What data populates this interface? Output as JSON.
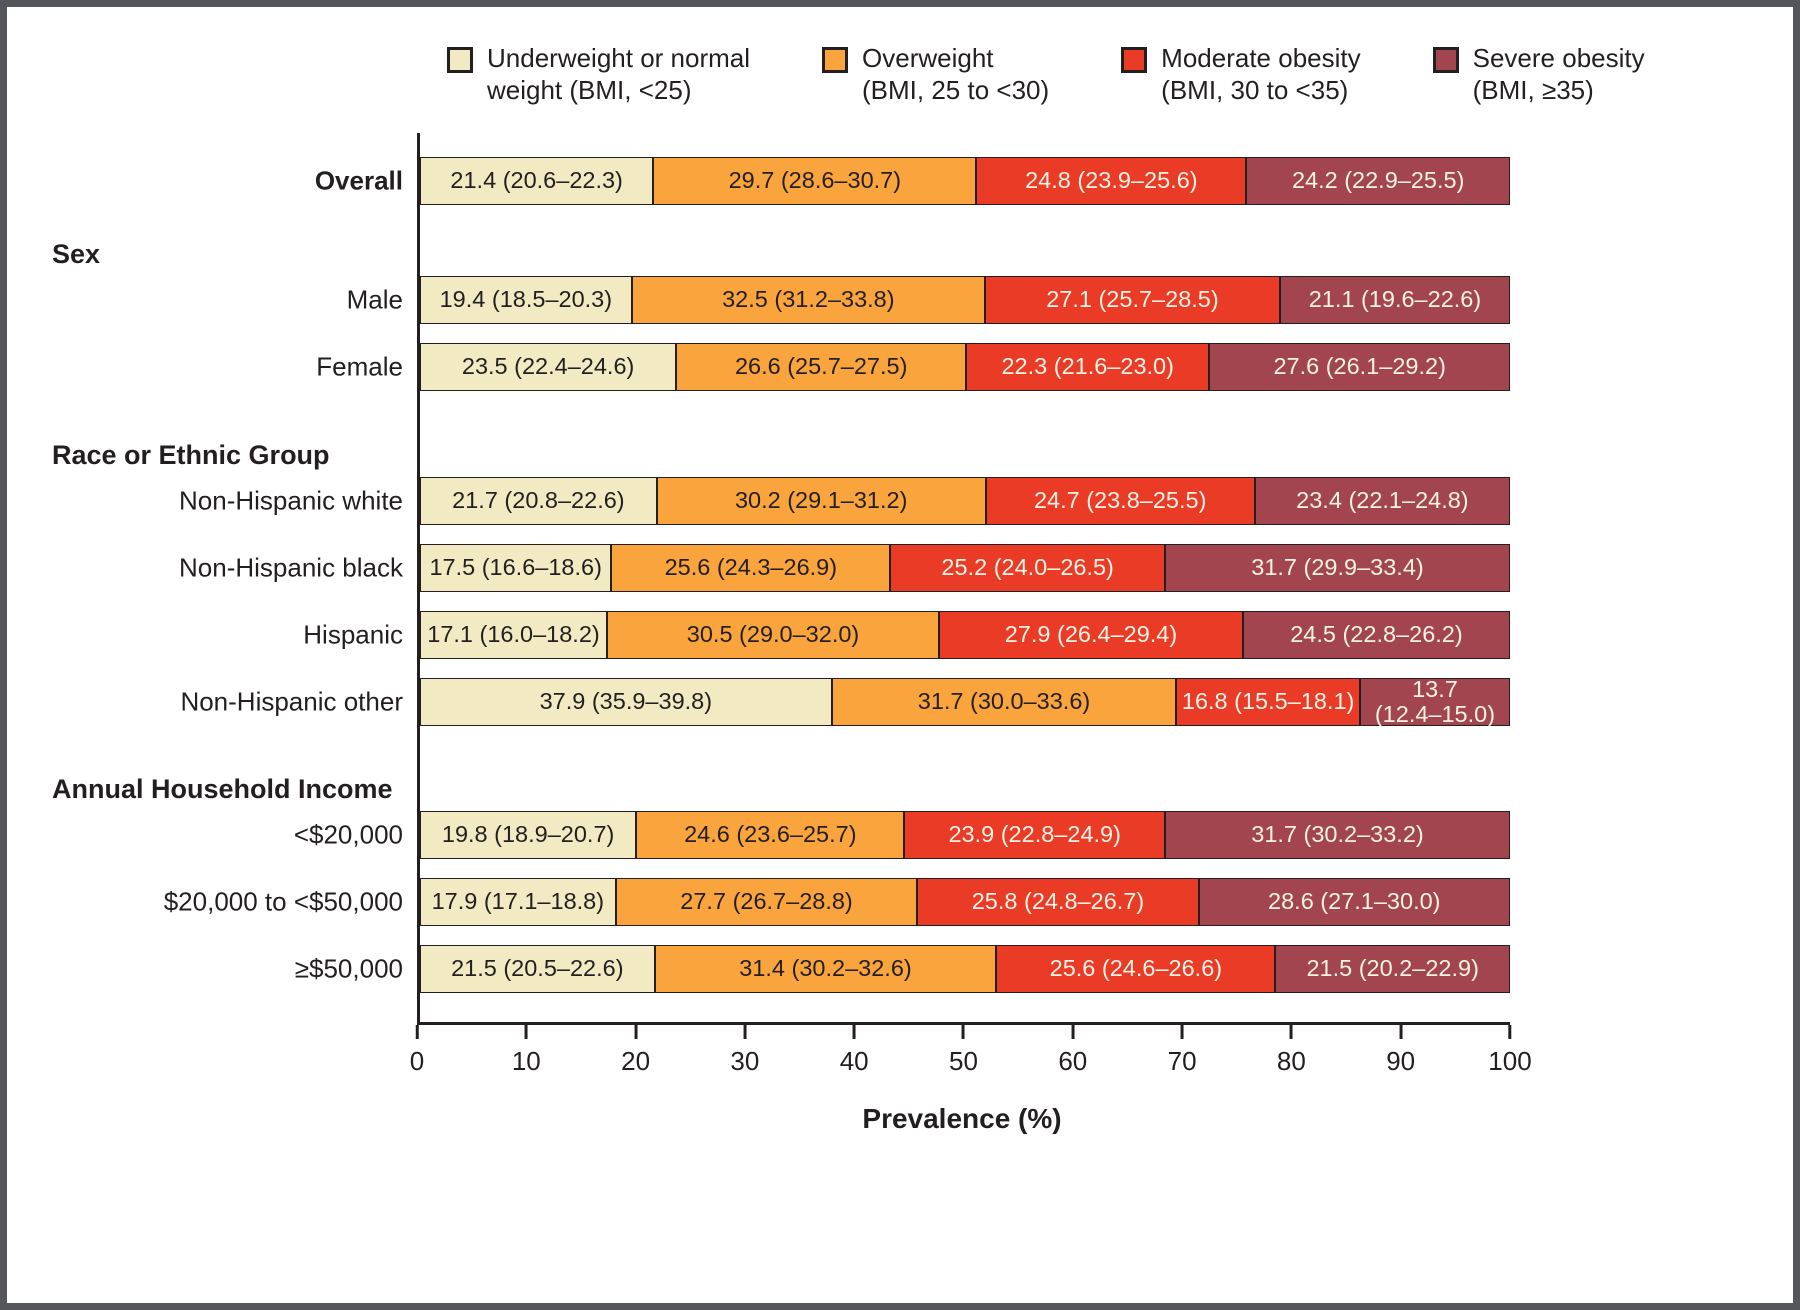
{
  "chart_data": {
    "type": "bar",
    "variant": "horizontal-stacked-100pct",
    "xlabel": "Prevalence (%)",
    "xlim": [
      0,
      100
    ],
    "x_ticks": [
      0,
      10,
      20,
      30,
      40,
      50,
      60,
      70,
      80,
      90,
      100
    ],
    "legend_position": "top",
    "grid": false,
    "legend": [
      {
        "name": "underweight-normal",
        "label": "Underweight or normal\nweight (BMI, <25)",
        "color": "#f1eac3",
        "text_color": "#231f20"
      },
      {
        "name": "overweight",
        "label": "Overweight\n(BMI, 25 to <30)",
        "color": "#f9a43c",
        "text_color": "#231f20"
      },
      {
        "name": "moderate-obesity",
        "label": "Moderate obesity\n(BMI, 30 to <35)",
        "color": "#e93b25",
        "text_color": "#faf3e6"
      },
      {
        "name": "severe-obesity",
        "label": "Severe obesity\n(BMI, ≥35)",
        "color": "#a3454e",
        "text_color": "#faf3e6"
      }
    ],
    "groups": [
      {
        "heading": null,
        "rows": [
          {
            "label": "Overall",
            "bold": true,
            "values": [
              21.4,
              29.7,
              24.8,
              24.2
            ],
            "display": [
              "21.4 (20.6–22.3)",
              "29.7 (28.6–30.7)",
              "24.8 (23.9–25.6)",
              "24.2 (22.9–25.5)"
            ]
          }
        ]
      },
      {
        "heading": "Sex",
        "rows": [
          {
            "label": "Male",
            "bold": false,
            "values": [
              19.4,
              32.5,
              27.1,
              21.1
            ],
            "display": [
              "19.4 (18.5–20.3)",
              "32.5 (31.2–33.8)",
              "27.1 (25.7–28.5)",
              "21.1 (19.6–22.6)"
            ]
          },
          {
            "label": "Female",
            "bold": false,
            "values": [
              23.5,
              26.6,
              22.3,
              27.6
            ],
            "display": [
              "23.5 (22.4–24.6)",
              "26.6 (25.7–27.5)",
              "22.3 (21.6–23.0)",
              "27.6 (26.1–29.2)"
            ]
          }
        ]
      },
      {
        "heading": "Race or Ethnic Group",
        "rows": [
          {
            "label": "Non-Hispanic white",
            "bold": false,
            "values": [
              21.7,
              30.2,
              24.7,
              23.4
            ],
            "display": [
              "21.7 (20.8–22.6)",
              "30.2 (29.1–31.2)",
              "24.7 (23.8–25.5)",
              "23.4 (22.1–24.8)"
            ]
          },
          {
            "label": "Non-Hispanic black",
            "bold": false,
            "values": [
              17.5,
              25.6,
              25.2,
              31.7
            ],
            "display": [
              "17.5 (16.6–18.6)",
              "25.6 (24.3–26.9)",
              "25.2 (24.0–26.5)",
              "31.7 (29.9–33.4)"
            ]
          },
          {
            "label": "Hispanic",
            "bold": false,
            "values": [
              17.1,
              30.5,
              27.9,
              24.5
            ],
            "display": [
              "17.1 (16.0–18.2)",
              "30.5 (29.0–32.0)",
              "27.9 (26.4–29.4)",
              "24.5 (22.8–26.2)"
            ]
          },
          {
            "label": "Non-Hispanic other",
            "bold": false,
            "values": [
              37.9,
              31.7,
              16.8,
              13.7
            ],
            "display": [
              "37.9 (35.9–39.8)",
              "31.7 (30.0–33.6)",
              "16.8 (15.5–18.1)",
              "13.7\n(12.4–15.0)"
            ]
          }
        ]
      },
      {
        "heading": "Annual Household Income",
        "rows": [
          {
            "label": "<$20,000",
            "bold": false,
            "values": [
              19.8,
              24.6,
              23.9,
              31.7
            ],
            "display": [
              "19.8 (18.9–20.7)",
              "24.6 (23.6–25.7)",
              "23.9 (22.8–24.9)",
              "31.7 (30.2–33.2)"
            ]
          },
          {
            "label": "$20,000 to <$50,000",
            "bold": false,
            "values": [
              17.9,
              27.7,
              25.8,
              28.6
            ],
            "display": [
              "17.9 (17.1–18.8)",
              "27.7 (26.7–28.8)",
              "25.8 (24.8–26.7)",
              "28.6 (27.1–30.0)"
            ]
          },
          {
            "label": "≥$50,000",
            "bold": false,
            "values": [
              21.5,
              31.4,
              25.6,
              21.5
            ],
            "display": [
              "21.5 (20.5–22.6)",
              "31.4 (30.2–32.6)",
              "25.6 (24.6–26.6)",
              "21.5 (20.2–22.9)"
            ]
          }
        ]
      }
    ]
  }
}
